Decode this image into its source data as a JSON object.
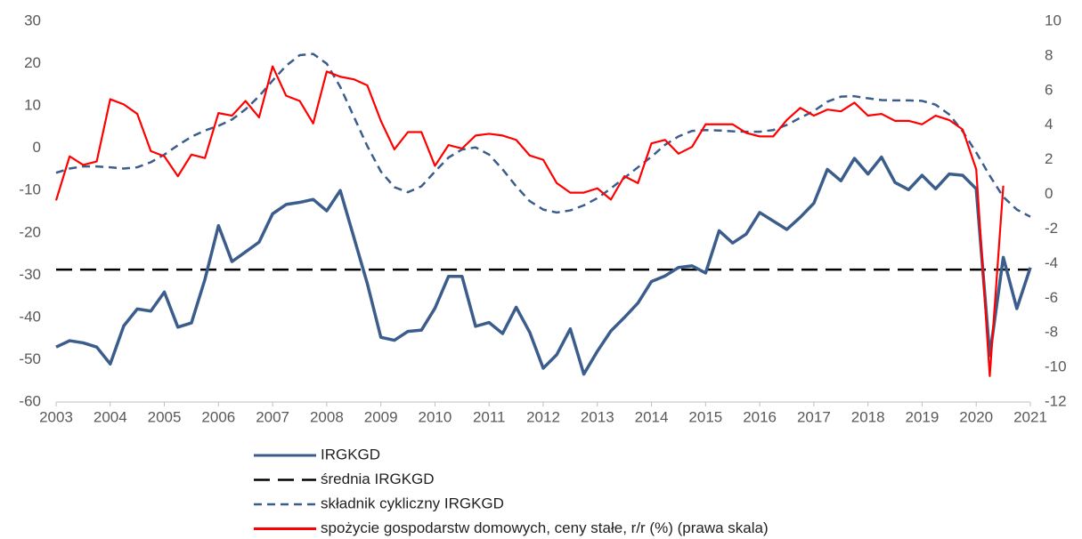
{
  "chart_data": {
    "type": "line",
    "x": [
      2003,
      2003.25,
      2003.5,
      2003.75,
      2004,
      2004.25,
      2004.5,
      2004.75,
      2005,
      2005.25,
      2005.5,
      2005.75,
      2006,
      2006.25,
      2006.5,
      2006.75,
      2007,
      2007.25,
      2007.5,
      2007.75,
      2008,
      2008.25,
      2008.5,
      2008.75,
      2009,
      2009.25,
      2009.5,
      2009.75,
      2010,
      2010.25,
      2010.5,
      2010.75,
      2011,
      2011.25,
      2011.5,
      2011.75,
      2012,
      2012.25,
      2012.5,
      2012.75,
      2013,
      2013.25,
      2013.5,
      2013.75,
      2014,
      2014.25,
      2014.5,
      2014.75,
      2015,
      2015.25,
      2015.5,
      2015.75,
      2016,
      2016.25,
      2016.5,
      2016.75,
      2017,
      2017.25,
      2017.5,
      2017.75,
      2018,
      2018.25,
      2018.5,
      2018.75,
      2019,
      2019.25,
      2019.5,
      2019.75,
      2020,
      2020.25,
      2020.5,
      2020.75,
      2021
    ],
    "series": [
      {
        "name": "IRGKGD",
        "color": "#3b5d8c",
        "line_style": "solid",
        "values": [
          -47,
          -45.5,
          -46,
          -47,
          -51,
          -42,
          -38,
          -38.5,
          -34,
          -42.3,
          -41.3,
          -31,
          -18.3,
          -26.8,
          -24.5,
          -22.2,
          -15.5,
          -13.3,
          -12.8,
          -12.1,
          -14.8,
          -10,
          -21,
          -32,
          -44.7,
          -45.4,
          -43.3,
          -43,
          -37.8,
          -30.3,
          -30.3,
          -42.1,
          -41.2,
          -43.8,
          -37.6,
          -43.5,
          -52,
          -48.8,
          -42.7,
          -53.4,
          -48,
          -43.2,
          -40,
          -36.6,
          -31.5,
          -30.2,
          -28.2,
          -27.8,
          -29.5,
          -19.5,
          -22.4,
          -20.3,
          -15.2,
          -17.2,
          -19.2,
          -16.3,
          -13,
          -5,
          -7.7,
          -2.4,
          -6.1,
          -2.1,
          -8.1,
          -9.8,
          -6.4,
          -9.6,
          -6.1,
          -6.4,
          -9.6,
          -49,
          -25.8,
          -37.9,
          -28.2
        ]
      },
      {
        "name": "średnia IRGKGD",
        "color": "#000000",
        "line_style": "long-dash",
        "x": [
          2003,
          2021
        ],
        "values": [
          -28.7,
          -28.7
        ]
      },
      {
        "name": "składnik cykliczny IRGKGD",
        "color": "#3b5d8c",
        "line_style": "short-dash",
        "values": [
          -5.8,
          -4.8,
          -4.3,
          -4.3,
          -4.5,
          -4.8,
          -4.5,
          -3.3,
          -1.5,
          0.7,
          2.7,
          4.2,
          5.3,
          6.8,
          9.2,
          12.3,
          16,
          19.5,
          22,
          22.3,
          20,
          14.5,
          7.5,
          0.5,
          -5.5,
          -9.2,
          -10.4,
          -9,
          -5.5,
          -2.2,
          -0.3,
          0.2,
          -1.5,
          -5,
          -9,
          -12.5,
          -14.5,
          -15.2,
          -14.7,
          -13.5,
          -11.8,
          -9.5,
          -7,
          -4.5,
          -2,
          0.8,
          2.8,
          4.1,
          4.3,
          4.2,
          4,
          3.9,
          3.9,
          4.3,
          5.5,
          7.2,
          8.8,
          11,
          12.2,
          12.3,
          11.8,
          11.4,
          11.3,
          11.3,
          11.2,
          10.3,
          8,
          4,
          -1,
          -6.5,
          -11.5,
          -14.5,
          -16.2
        ]
      },
      {
        "name": "spożycie gospodarstw domowych, ceny stałe, r/r (%) (prawa skala)",
        "color": "#ff0000",
        "line_style": "solid",
        "axis": "y2",
        "values": [
          -0.35,
          2.2,
          1.7,
          1.9,
          5.5,
          5.2,
          4.65,
          2.5,
          2.2,
          1.05,
          2.3,
          2.1,
          4.7,
          4.55,
          5.4,
          4.45,
          7.4,
          5.7,
          5.4,
          4.1,
          7.1,
          6.8,
          6.65,
          6.3,
          4.25,
          2.6,
          3.6,
          3.6,
          1.65,
          2.85,
          2.65,
          3.4,
          3.5,
          3.4,
          3.15,
          2.25,
          2,
          0.65,
          0.1,
          0.1,
          0.35,
          -0.3,
          1.05,
          0.65,
          2.95,
          3.15,
          2.35,
          2.75,
          4.05,
          4.05,
          4.05,
          3.55,
          3.35,
          3.35,
          4.3,
          5,
          4.55,
          4.9,
          4.8,
          5.3,
          4.55,
          4.65,
          4.25,
          4.25,
          4.05,
          4.55,
          4.3,
          3.75,
          1.45,
          -10.5,
          0.5,
          null,
          null
        ]
      }
    ],
    "xlim": [
      2003,
      2021
    ],
    "xticks": [
      2003,
      2004,
      2005,
      2006,
      2007,
      2008,
      2009,
      2010,
      2011,
      2012,
      2013,
      2014,
      2015,
      2016,
      2017,
      2018,
      2019,
      2020,
      2021
    ],
    "ylim": [
      -60,
      30
    ],
    "yticks": [
      -60,
      -50,
      -40,
      -30,
      -20,
      -10,
      0,
      10,
      20,
      30
    ],
    "y2lim": [
      -12,
      10
    ],
    "y2ticks": [
      -12,
      -10,
      -8,
      -6,
      -4,
      -2,
      0,
      2,
      4,
      6,
      8,
      10
    ],
    "grid": false
  }
}
